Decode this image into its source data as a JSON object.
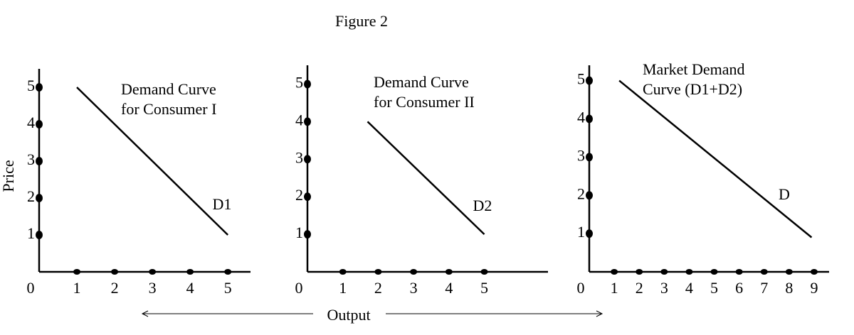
{
  "figure": {
    "title": "Figure 2",
    "ylabel": "Price",
    "xlabel": "Output"
  },
  "chart_data": [
    {
      "type": "line",
      "annotation": [
        "Demand Curve",
        "for Consumer I"
      ],
      "x": [
        1,
        5
      ],
      "series": [
        {
          "name": "D1",
          "color": "#000000",
          "values": [
            5,
            1
          ]
        }
      ],
      "xlim": [
        0,
        5.6
      ],
      "ylim": [
        0,
        5.5
      ],
      "xticks": [
        0,
        1,
        2,
        3,
        4,
        5
      ],
      "yticks": [
        1,
        2,
        3,
        4,
        5
      ]
    },
    {
      "type": "line",
      "annotation": [
        "Demand Curve",
        "for Consumer II"
      ],
      "x": [
        1.7,
        5
      ],
      "series": [
        {
          "name": "D2",
          "color": "#000000",
          "values": [
            4,
            1
          ]
        }
      ],
      "xlim": [
        0,
        6.8
      ],
      "ylim": [
        0,
        5.5
      ],
      "xticks": [
        0,
        1,
        2,
        3,
        4,
        5
      ],
      "yticks": [
        1,
        2,
        3,
        4,
        5
      ]
    },
    {
      "type": "line",
      "annotation": [
        "Market Demand",
        "Curve (D1+D2)"
      ],
      "x": [
        1.2,
        8.9
      ],
      "series": [
        {
          "name": "D",
          "color": "#000000",
          "values": [
            5,
            0.9
          ]
        }
      ],
      "xlim": [
        0,
        9.6
      ],
      "ylim": [
        0,
        5.4
      ],
      "xticks": [
        0,
        1,
        2,
        3,
        4,
        5,
        6,
        7,
        8,
        9
      ],
      "yticks": [
        1,
        2,
        3,
        4,
        5
      ]
    }
  ]
}
